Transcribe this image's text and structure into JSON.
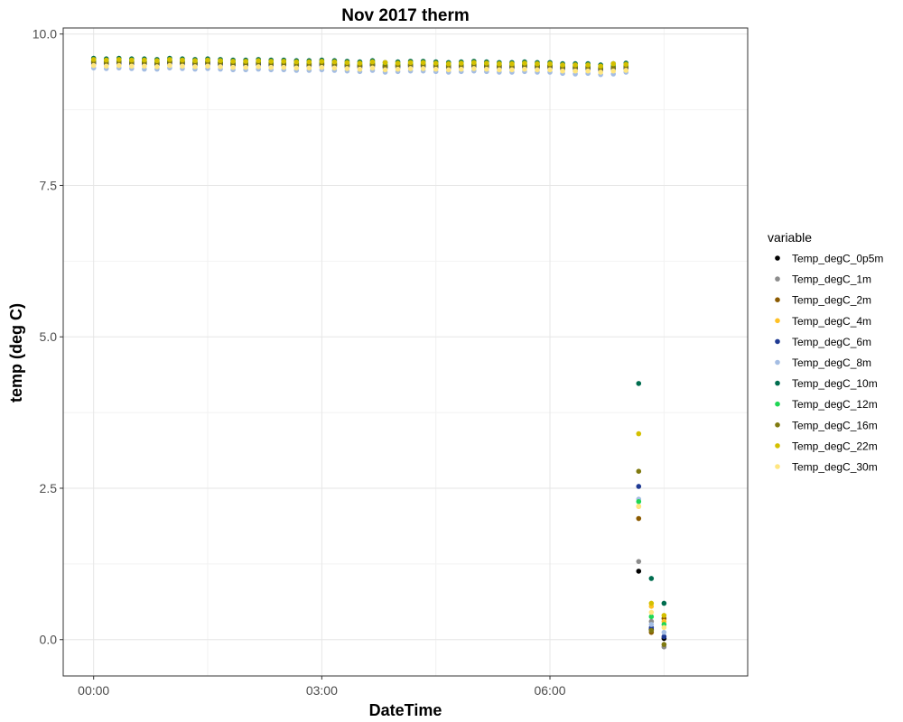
{
  "chart_data": {
    "type": "scatter",
    "title": "Nov 2017 therm",
    "xlabel": "DateTime",
    "ylabel": "temp (deg C)",
    "x_ticks": [
      "00:00",
      "03:00",
      "06:00"
    ],
    "y_ticks": [
      "0.0",
      "2.5",
      "5.0",
      "7.5",
      "10.0"
    ],
    "x_unit": "hours",
    "xlim": [
      -0.4,
      8.6
    ],
    "ylim": [
      -0.6,
      10.1
    ],
    "grid": true,
    "legend": {
      "title": "variable",
      "placement": "right"
    },
    "x": [
      0,
      0.1667,
      0.3333,
      0.5,
      0.6667,
      0.8333,
      1,
      1.1667,
      1.3333,
      1.5,
      1.6667,
      1.8333,
      2,
      2.1667,
      2.3333,
      2.5,
      2.6667,
      2.8333,
      3,
      3.1667,
      3.3333,
      3.5,
      3.6667,
      3.8333,
      4,
      4.1667,
      4.3333,
      4.5,
      4.6667,
      4.8333,
      5,
      5.1667,
      5.3333,
      5.5,
      5.6667,
      5.8333,
      6,
      6.1667,
      6.3333,
      6.5,
      6.6667,
      6.8333,
      7,
      7.1667,
      7.3333,
      7.5
    ],
    "series": [
      {
        "name": "Temp_degC_0p5m",
        "color": "#000000",
        "values": [
          9.53,
          9.52,
          9.53,
          9.52,
          9.52,
          9.51,
          9.53,
          9.52,
          9.51,
          9.52,
          9.52,
          9.5,
          9.5,
          9.51,
          9.5,
          9.5,
          9.49,
          9.49,
          9.5,
          9.49,
          9.48,
          9.47,
          9.49,
          9.46,
          9.47,
          9.48,
          9.48,
          9.47,
          9.46,
          9.47,
          9.48,
          9.47,
          9.46,
          9.46,
          9.47,
          9.46,
          9.46,
          9.44,
          9.44,
          9.44,
          9.42,
          9.44,
          9.45,
          1.13,
          0.17,
          0.02
        ]
      },
      {
        "name": "Temp_degC_1m",
        "color": "#8c8c8c",
        "values": [
          9.5,
          9.49,
          9.5,
          9.49,
          9.49,
          9.48,
          9.5,
          9.49,
          9.48,
          9.49,
          9.48,
          9.47,
          9.47,
          9.48,
          9.47,
          9.47,
          9.46,
          9.46,
          9.47,
          9.46,
          9.45,
          9.44,
          9.46,
          9.43,
          9.44,
          9.45,
          9.45,
          9.44,
          9.43,
          9.44,
          9.45,
          9.44,
          9.43,
          9.43,
          9.44,
          9.43,
          9.43,
          9.41,
          9.39,
          9.41,
          9.39,
          9.4,
          9.42,
          1.29,
          0.3,
          -0.12
        ]
      },
      {
        "name": "Temp_degC_2m",
        "color": "#8b5a00",
        "values": [
          9.55,
          9.54,
          9.55,
          9.54,
          9.54,
          9.53,
          9.55,
          9.54,
          9.53,
          9.54,
          9.53,
          9.52,
          9.52,
          9.53,
          9.52,
          9.52,
          9.51,
          9.51,
          9.52,
          9.51,
          9.5,
          9.49,
          9.51,
          9.48,
          9.49,
          9.5,
          9.5,
          9.49,
          9.48,
          9.49,
          9.5,
          9.49,
          9.48,
          9.45,
          9.49,
          9.48,
          9.48,
          9.46,
          9.45,
          9.46,
          9.44,
          9.46,
          9.47,
          2.0,
          0.12,
          0.35
        ]
      },
      {
        "name": "Temp_degC_4m",
        "color": "#ffc125",
        "values": [
          9.57,
          9.56,
          9.57,
          9.56,
          9.56,
          9.55,
          9.57,
          9.56,
          9.55,
          9.56,
          9.55,
          9.54,
          9.54,
          9.55,
          9.54,
          9.54,
          9.53,
          9.53,
          9.54,
          9.53,
          9.52,
          9.51,
          9.53,
          9.5,
          9.51,
          9.52,
          9.52,
          9.51,
          9.5,
          9.51,
          9.52,
          9.51,
          9.5,
          9.5,
          9.51,
          9.5,
          9.5,
          9.48,
          9.48,
          9.48,
          9.46,
          9.48,
          9.49,
          2.2,
          0.55,
          0.3
        ]
      },
      {
        "name": "Temp_degC_6m",
        "color": "#1f3a93",
        "values": [
          9.52,
          9.51,
          9.52,
          9.51,
          9.51,
          9.5,
          9.52,
          9.51,
          9.5,
          9.51,
          9.5,
          9.49,
          9.49,
          9.5,
          9.49,
          9.49,
          9.48,
          9.48,
          9.49,
          9.48,
          9.47,
          9.46,
          9.48,
          9.45,
          9.46,
          9.47,
          9.47,
          9.46,
          9.45,
          9.46,
          9.47,
          9.46,
          9.45,
          9.45,
          9.46,
          9.45,
          9.45,
          9.43,
          9.43,
          9.43,
          9.41,
          9.43,
          9.44,
          2.53,
          0.2,
          0.05
        ]
      },
      {
        "name": "Temp_degC_8m",
        "color": "#a4bde3",
        "values": [
          9.44,
          9.43,
          9.44,
          9.43,
          9.42,
          9.42,
          9.44,
          9.43,
          9.42,
          9.43,
          9.42,
          9.41,
          9.41,
          9.42,
          9.41,
          9.41,
          9.4,
          9.4,
          9.41,
          9.4,
          9.39,
          9.38,
          9.4,
          9.37,
          9.38,
          9.39,
          9.39,
          9.38,
          9.37,
          9.38,
          9.39,
          9.38,
          9.37,
          9.37,
          9.38,
          9.37,
          9.37,
          9.35,
          9.34,
          9.35,
          9.33,
          9.34,
          9.37,
          2.32,
          0.25,
          0.12
        ]
      },
      {
        "name": "Temp_degC_10m",
        "color": "#006d4f",
        "values": [
          9.6,
          9.59,
          9.6,
          9.59,
          9.59,
          9.58,
          9.6,
          9.59,
          9.58,
          9.59,
          9.58,
          9.57,
          9.57,
          9.58,
          9.57,
          9.57,
          9.56,
          9.56,
          9.57,
          9.56,
          9.55,
          9.54,
          9.56,
          9.53,
          9.54,
          9.55,
          9.55,
          9.54,
          9.53,
          9.54,
          9.55,
          9.54,
          9.53,
          9.53,
          9.54,
          9.53,
          9.53,
          9.51,
          9.51,
          9.51,
          9.49,
          9.51,
          9.52,
          4.23,
          1.01,
          0.6
        ]
      },
      {
        "name": "Temp_degC_12m",
        "color": "#1fd655",
        "values": [
          9.56,
          9.55,
          9.56,
          9.55,
          9.55,
          9.54,
          9.56,
          9.55,
          9.54,
          9.55,
          9.54,
          9.53,
          9.53,
          9.54,
          9.53,
          9.53,
          9.52,
          9.52,
          9.53,
          9.52,
          9.51,
          9.5,
          9.52,
          9.49,
          9.5,
          9.51,
          9.51,
          9.5,
          9.49,
          9.5,
          9.51,
          9.5,
          9.49,
          9.49,
          9.5,
          9.49,
          9.49,
          9.47,
          9.47,
          9.47,
          9.45,
          9.47,
          9.48,
          2.28,
          0.38,
          0.25
        ]
      },
      {
        "name": "Temp_degC_16m",
        "color": "#807a10",
        "values": [
          9.54,
          9.53,
          9.54,
          9.53,
          9.53,
          9.52,
          9.54,
          9.53,
          9.52,
          9.53,
          9.52,
          9.51,
          9.51,
          9.52,
          9.51,
          9.51,
          9.5,
          9.5,
          9.51,
          9.5,
          9.49,
          9.48,
          9.5,
          9.47,
          9.48,
          9.49,
          9.49,
          9.48,
          9.47,
          9.48,
          9.49,
          9.48,
          9.47,
          9.47,
          9.48,
          9.47,
          9.47,
          9.45,
          9.45,
          9.45,
          9.43,
          9.45,
          9.46,
          2.78,
          0.15,
          -0.08
        ]
      },
      {
        "name": "Temp_degC_22m",
        "color": "#d4c000",
        "values": [
          9.58,
          9.57,
          9.58,
          9.57,
          9.57,
          9.56,
          9.58,
          9.57,
          9.56,
          9.57,
          9.56,
          9.55,
          9.55,
          9.56,
          9.55,
          9.55,
          9.54,
          9.54,
          9.55,
          9.54,
          9.53,
          9.52,
          9.54,
          9.53,
          9.52,
          9.53,
          9.53,
          9.52,
          9.51,
          9.52,
          9.53,
          9.52,
          9.51,
          9.51,
          9.52,
          9.51,
          9.51,
          9.49,
          9.49,
          9.49,
          9.47,
          9.51,
          9.5,
          3.4,
          0.6,
          0.4
        ]
      },
      {
        "name": "Temp_degC_30m",
        "color": "#ffe680",
        "values": [
          9.48,
          9.47,
          9.48,
          9.47,
          9.47,
          9.46,
          9.48,
          9.47,
          9.46,
          9.47,
          9.46,
          9.45,
          9.45,
          9.46,
          9.45,
          9.45,
          9.44,
          9.44,
          9.45,
          9.44,
          9.43,
          9.42,
          9.44,
          9.41,
          9.42,
          9.43,
          9.43,
          9.42,
          9.41,
          9.42,
          9.43,
          9.42,
          9.41,
          9.41,
          9.42,
          9.41,
          9.41,
          9.39,
          9.39,
          9.39,
          9.37,
          9.39,
          9.4,
          2.2,
          0.45,
          0.2
        ]
      }
    ]
  }
}
